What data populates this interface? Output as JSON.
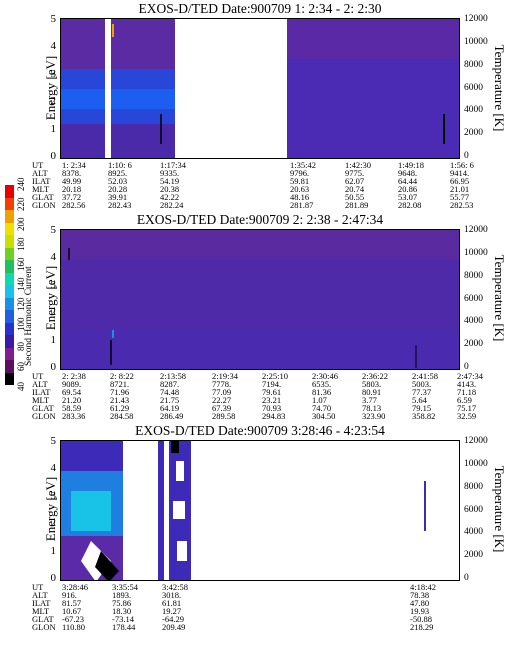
{
  "colorbar": {
    "label": "Second Harmonic Current",
    "ticks": [
      "40",
      "60",
      "80",
      "100",
      "120",
      "140",
      "160",
      "180",
      "200",
      "220",
      "240"
    ],
    "colors": [
      "#000000",
      "#5a0f5a",
      "#7f1f8f",
      "#3d1aa6",
      "#2a2fd0",
      "#1f5fe0",
      "#1a8fe8",
      "#19c3e8",
      "#10d8b0",
      "#20c060",
      "#70d020",
      "#c8e000",
      "#f0e000",
      "#f0a000",
      "#f04000",
      "#e80000"
    ]
  },
  "panels": [
    {
      "title": "EXOS-D/TED  Date:900709  1: 2:34 - 2: 2:30",
      "ylabel": "Energy [eV]",
      "rlabel": "Temperature [K]",
      "yticks": [
        "0",
        "1",
        "2",
        "3",
        "4",
        "5"
      ],
      "rticks": [
        "0",
        "2000",
        "4000",
        "6000",
        "8000",
        "10000",
        "12000"
      ],
      "rows": [
        "UT",
        "ALT",
        "ILAT",
        "MLT",
        "GLAT",
        "GLON"
      ],
      "cols": [
        {
          "vals": [
            "1: 2:34",
            "8378.",
            "49.99",
            "20.18",
            "37.72",
            "282.56"
          ]
        },
        {
          "vals": [
            "1:10: 6",
            "8925.",
            "52.03",
            "20.28",
            "39.91",
            "282.43"
          ]
        },
        {
          "vals": [
            "1:17:34",
            "9335.",
            "54.19",
            "20.38",
            "42.22",
            "282.24"
          ]
        },
        {
          "vals": [
            "1:35:42",
            "9796.",
            "59.81",
            "20.63",
            "48.16",
            "281.87"
          ]
        },
        {
          "vals": [
            "1:42:30",
            "9775.",
            "62.07",
            "20.74",
            "50.55",
            "281.89"
          ]
        },
        {
          "vals": [
            "1:49:18",
            "9648.",
            "64.44",
            "20.86",
            "53.07",
            "282.08"
          ]
        },
        {
          "vals": [
            "1:56: 6",
            "9414.",
            "66.95",
            "21.01",
            "55.77",
            "282.53"
          ]
        }
      ]
    },
    {
      "title": "EXOS-D/TED  Date:900709  2: 2:38 - 2:47:34",
      "ylabel": "Energy [eV]",
      "rlabel": "Temperature [K]",
      "yticks": [
        "0",
        "1",
        "2",
        "3",
        "4",
        "5"
      ],
      "rticks": [
        "0",
        "2000",
        "4000",
        "6000",
        "8000",
        "10000",
        "12000"
      ],
      "rows": [
        "UT",
        "ALT",
        "ILAT",
        "MLT",
        "GLAT",
        "GLON"
      ],
      "cols": [
        {
          "vals": [
            "2: 2:38",
            "9089.",
            "69.54",
            "21.20",
            "58.59",
            "283.36"
          ]
        },
        {
          "vals": [
            "2: 8:22",
            "8721.",
            "71.96",
            "21.43",
            "61.29",
            "284.58"
          ]
        },
        {
          "vals": [
            "2:13:58",
            "8287.",
            "74.48",
            "21.75",
            "64.19",
            "286.49"
          ]
        },
        {
          "vals": [
            "2:19:34",
            "7778.",
            "77.09",
            "22.27",
            "67.39",
            "289.58"
          ]
        },
        {
          "vals": [
            "2:25:10",
            "7194.",
            "79.61",
            "23.21",
            "70.93",
            "294.83"
          ]
        },
        {
          "vals": [
            "2:30:46",
            "6535.",
            "81.36",
            "1.07",
            "74.70",
            "304.50"
          ]
        },
        {
          "vals": [
            "2:36:22",
            "5803.",
            "80.91",
            "3.77",
            "78.13",
            "323.90"
          ]
        },
        {
          "vals": [
            "2:41:58",
            "5003.",
            "77.37",
            "5.64",
            "79.15",
            "358.82"
          ]
        },
        {
          "vals": [
            "2:47:34",
            "4143.",
            "71.18",
            "6.59",
            "75.17",
            "32.59"
          ]
        }
      ]
    },
    {
      "title": "EXOS-D/TED  Date:900709  3:28:46 - 4:23:54",
      "ylabel": "Energy [eV]",
      "rlabel": "Temperature [K]",
      "yticks": [
        "0",
        "1",
        "2",
        "3",
        "4",
        "5"
      ],
      "rticks": [
        "0",
        "2000",
        "4000",
        "6000",
        "8000",
        "10000",
        "12000"
      ],
      "rows": [
        "UT",
        "ALT",
        "ILAT",
        "MLT",
        "GLAT",
        "GLON"
      ],
      "cols": [
        {
          "vals": [
            "3:28:46",
            "916.",
            "81.57",
            "10.67",
            "-67.23",
            "110.80"
          ]
        },
        {
          "vals": [
            "3:35:54",
            "1893.",
            "75.86",
            "18.30",
            "-73.14",
            "178.44"
          ]
        },
        {
          "vals": [
            "3:42:58",
            "3018.",
            "61.81",
            "19.27",
            "-64.29",
            "209.49"
          ]
        },
        {
          "vals": [
            "4:18:42",
            "78.38",
            "47.80",
            "19.93",
            "-50.88",
            "218.29"
          ]
        }
      ]
    }
  ],
  "chart_data": [
    {
      "type": "heatmap",
      "title": "EXOS-D/TED  Date:900709  1: 2:34 - 2: 2:30",
      "xlabel": "UT",
      "ylabel": "Energy [eV]",
      "y2label": "Temperature [K]",
      "ylim": [
        0,
        5
      ],
      "y2lim": [
        0,
        12000
      ],
      "x_ticks": [
        "1: 2:34",
        "1:10: 6",
        "1:17:34",
        "1:35:42",
        "1:42:30",
        "1:49:18",
        "1:56: 6"
      ],
      "colorbar_label": "Second Harmonic Current",
      "colorbar_range": [
        40,
        240
      ]
    },
    {
      "type": "heatmap",
      "title": "EXOS-D/TED  Date:900709  2: 2:38 - 2:47:34",
      "xlabel": "UT",
      "ylabel": "Energy [eV]",
      "y2label": "Temperature [K]",
      "ylim": [
        0,
        5
      ],
      "y2lim": [
        0,
        12000
      ],
      "x_ticks": [
        "2: 2:38",
        "2: 8:22",
        "2:13:58",
        "2:19:34",
        "2:25:10",
        "2:30:46",
        "2:36:22",
        "2:41:58",
        "2:47:34"
      ],
      "colorbar_label": "Second Harmonic Current",
      "colorbar_range": [
        40,
        240
      ]
    },
    {
      "type": "heatmap",
      "title": "EXOS-D/TED  Date:900709  3:28:46 - 4:23:54",
      "xlabel": "UT",
      "ylabel": "Energy [eV]",
      "y2label": "Temperature [K]",
      "ylim": [
        0,
        5
      ],
      "y2lim": [
        0,
        12000
      ],
      "x_ticks": [
        "3:28:46",
        "3:35:54",
        "3:42:58",
        "4:18:42"
      ],
      "colorbar_label": "Second Harmonic Current",
      "colorbar_range": [
        40,
        240
      ]
    }
  ]
}
